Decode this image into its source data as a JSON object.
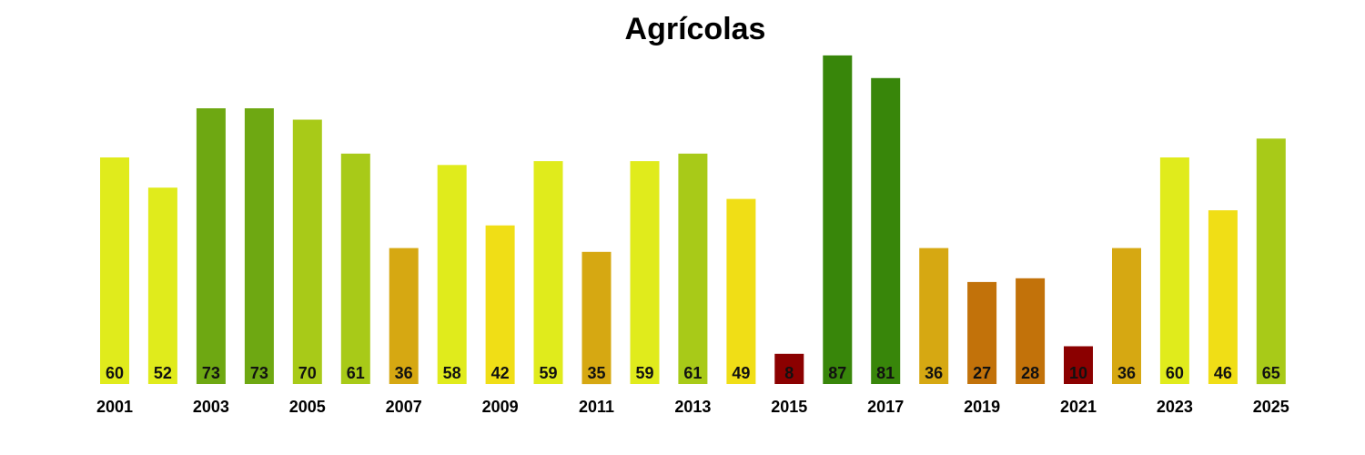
{
  "chart_data": {
    "type": "bar",
    "title": "Agrícolas",
    "xlabel": "",
    "ylabel": "",
    "ylim": [
      0,
      90
    ],
    "grid": false,
    "legend": "none",
    "categories": [
      "2001",
      "2002",
      "2003",
      "2004",
      "2005",
      "2006",
      "2007",
      "2008",
      "2009",
      "2010",
      "2011",
      "2012",
      "2013",
      "2014",
      "2015",
      "2016",
      "2017",
      "2018",
      "2019",
      "2020",
      "2021",
      "2022",
      "2023",
      "2024",
      "2025"
    ],
    "tick_labels": [
      "2001",
      "",
      "2003",
      "",
      "2005",
      "",
      "2007",
      "",
      "2009",
      "",
      "2011",
      "",
      "2013",
      "",
      "2015",
      "",
      "2017",
      "",
      "2019",
      "",
      "2021",
      "",
      "2023",
      "",
      "2025"
    ],
    "values": [
      60,
      52,
      73,
      73,
      70,
      61,
      36,
      58,
      42,
      59,
      35,
      59,
      61,
      49,
      8,
      87,
      81,
      36,
      27,
      28,
      10,
      36,
      60,
      46,
      65
    ],
    "colors": [
      "#e0eb1c",
      "#e0eb1c",
      "#6ea812",
      "#6ea812",
      "#a8ca18",
      "#a8ca18",
      "#d6a812",
      "#e0eb1c",
      "#f0de16",
      "#e0eb1c",
      "#d6a812",
      "#e0eb1c",
      "#a8ca18",
      "#f0de16",
      "#8b0000",
      "#38860a",
      "#38860a",
      "#d6a812",
      "#c2720a",
      "#c2720a",
      "#8b0000",
      "#d6a812",
      "#e0eb1c",
      "#f0de16",
      "#a8ca18"
    ]
  }
}
